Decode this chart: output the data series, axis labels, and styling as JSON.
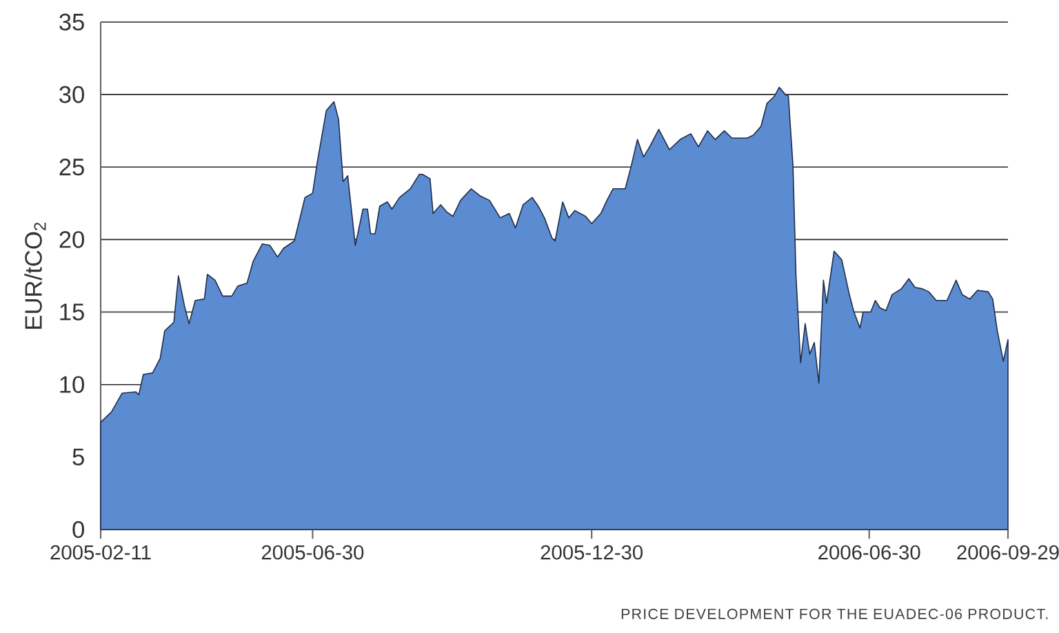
{
  "chart_data": {
    "type": "area",
    "ylabel": "EUR/tCO$_{2}$",
    "annotations": [
      "PRICE DEVELOPMENT FOR THE EUADEC-06 PRODUCT."
    ],
    "xlim": [
      "2005-02-11",
      "2006-09-29"
    ],
    "xticks": [
      "2005-02-11",
      "2005-06-30",
      "2005-12-30",
      "2006-06-30",
      "2006-09-29"
    ],
    "ylim": [
      0,
      35
    ],
    "yticks": [
      0,
      5,
      10,
      15,
      20,
      25,
      30,
      35
    ],
    "grid": "y",
    "color": "#5b8bd0",
    "x": [
      "2005-02-11",
      "2005-02-18",
      "2005-02-25",
      "2005-03-06",
      "2005-03-08",
      "2005-03-11",
      "2005-03-17",
      "2005-03-22",
      "2005-03-25",
      "2005-03-31",
      "2005-04-03",
      "2005-04-07",
      "2005-04-10",
      "2005-04-14",
      "2005-04-20",
      "2005-04-22",
      "2005-04-27",
      "2005-05-02",
      "2005-05-08",
      "2005-05-12",
      "2005-05-18",
      "2005-05-22",
      "2005-05-28",
      "2005-06-02",
      "2005-06-07",
      "2005-06-11",
      "2005-06-18",
      "2005-06-25",
      "2005-06-30",
      "2005-07-03",
      "2005-07-09",
      "2005-07-14",
      "2005-07-17",
      "2005-07-20",
      "2005-07-23",
      "2005-07-28",
      "2005-08-02",
      "2005-08-05",
      "2005-08-07",
      "2005-08-10",
      "2005-08-13",
      "2005-08-18",
      "2005-08-21",
      "2005-08-26",
      "2005-09-02",
      "2005-09-08",
      "2005-09-10",
      "2005-09-15",
      "2005-09-17",
      "2005-09-22",
      "2005-09-26",
      "2005-09-30",
      "2005-10-05",
      "2005-10-12",
      "2005-10-18",
      "2005-10-24",
      "2005-10-31",
      "2005-11-06",
      "2005-11-10",
      "2005-11-15",
      "2005-11-21",
      "2005-11-25",
      "2005-11-29",
      "2005-12-04",
      "2005-12-06",
      "2005-12-11",
      "2005-12-15",
      "2005-12-19",
      "2005-12-26",
      "2005-12-30",
      "2006-01-05",
      "2006-01-09",
      "2006-01-13",
      "2006-01-21",
      "2006-01-25",
      "2006-01-29",
      "2006-02-02",
      "2006-02-06",
      "2006-02-12",
      "2006-02-19",
      "2006-02-26",
      "2006-03-05",
      "2006-03-10",
      "2006-03-16",
      "2006-03-21",
      "2006-03-27",
      "2006-04-01",
      "2006-04-11",
      "2006-04-15",
      "2006-04-20",
      "2006-04-24",
      "2006-04-29",
      "2006-05-02",
      "2006-05-06",
      "2006-05-08",
      "2006-05-11",
      "2006-05-13",
      "2006-05-16",
      "2006-05-19",
      "2006-05-22",
      "2006-05-25",
      "2006-05-28",
      "2006-05-31",
      "2006-06-02",
      "2006-06-07",
      "2006-06-12",
      "2006-06-17",
      "2006-06-20",
      "2006-06-24",
      "2006-06-26",
      "2006-07-01",
      "2006-07-04",
      "2006-07-07",
      "2006-07-11",
      "2006-07-15",
      "2006-07-21",
      "2006-07-26",
      "2006-07-30",
      "2006-08-04",
      "2006-08-08",
      "2006-08-13",
      "2006-08-20",
      "2006-08-26",
      "2006-08-30",
      "2006-09-04",
      "2006-09-09",
      "2006-09-16",
      "2006-09-19",
      "2006-09-22",
      "2006-09-26",
      "2006-09-29"
    ],
    "values": [
      7.4,
      8.1,
      9.4,
      9.5,
      9.3,
      10.7,
      10.8,
      11.8,
      13.7,
      14.3,
      17.5,
      15.4,
      14.2,
      15.8,
      15.9,
      17.6,
      17.2,
      16.1,
      16.1,
      16.8,
      17.0,
      18.5,
      19.7,
      19.6,
      18.8,
      19.4,
      19.9,
      22.9,
      23.2,
      25.3,
      28.9,
      29.5,
      28.3,
      24.0,
      24.4,
      19.6,
      22.1,
      22.1,
      20.4,
      20.4,
      22.3,
      22.6,
      22.1,
      22.9,
      23.5,
      24.5,
      24.5,
      24.2,
      21.8,
      22.4,
      21.9,
      21.6,
      22.7,
      23.5,
      23.0,
      22.7,
      21.5,
      21.8,
      20.8,
      22.4,
      22.9,
      22.3,
      21.5,
      20.1,
      19.9,
      22.6,
      21.5,
      22.0,
      21.6,
      21.1,
      21.8,
      22.7,
      23.5,
      23.5,
      25.1,
      26.9,
      25.7,
      26.4,
      27.6,
      26.2,
      26.9,
      27.3,
      26.4,
      27.5,
      26.9,
      27.5,
      27.0,
      27.0,
      27.2,
      27.8,
      29.4,
      29.9,
      30.5,
      30.0,
      29.9,
      25.1,
      17.5,
      11.5,
      14.2,
      12.1,
      12.9,
      10.1,
      17.2,
      15.6,
      19.2,
      18.6,
      16.2,
      15.0,
      13.9,
      15.0,
      15.0,
      15.8,
      15.3,
      15.1,
      16.2,
      16.6,
      17.3,
      16.7,
      16.6,
      16.4,
      15.8,
      15.8,
      17.2,
      16.2,
      15.9,
      16.5,
      16.4,
      15.9,
      13.7,
      11.6,
      13.1
    ]
  }
}
